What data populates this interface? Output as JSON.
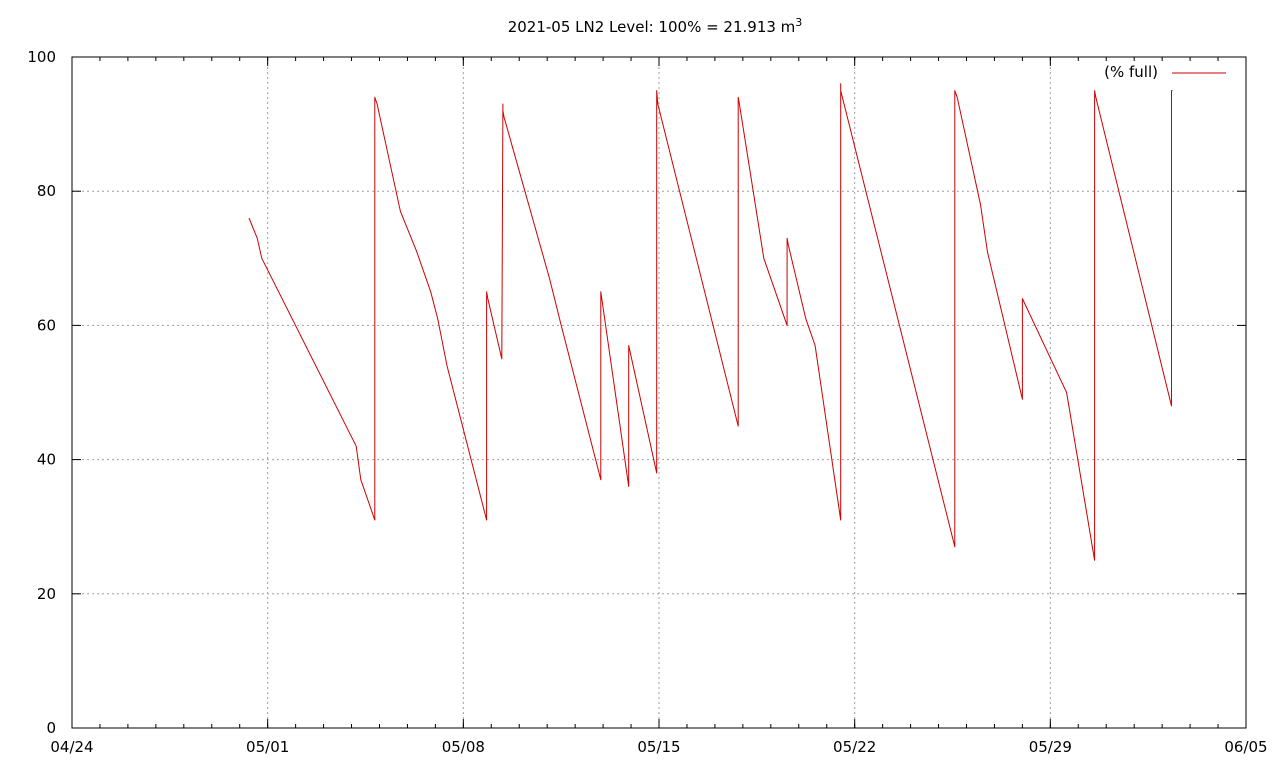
{
  "chart_data": {
    "type": "line",
    "title": "2021-05 LN2 Level: 100% = 21.913 m",
    "title_superscript": "3",
    "xlabel": "",
    "ylabel": "",
    "xlim": [
      "04/24",
      "06/05"
    ],
    "ylim": [
      0,
      100
    ],
    "x_ticks": [
      "04/24",
      "05/01",
      "05/08",
      "05/15",
      "05/22",
      "05/29",
      "06/05"
    ],
    "y_ticks": [
      "0",
      "20",
      "40",
      "60",
      "80",
      "100"
    ],
    "grid": true,
    "legend_position": "top-right",
    "series": [
      {
        "name": "(% full)",
        "color": "#cc0000",
        "x": [
          "04/30 08:00",
          "04/30 15:00",
          "04/30 19:00",
          "05/04 04:00",
          "05/04 08:00",
          "05/04 20:00",
          "05/04 20:00",
          "05/04 22:00",
          "05/05 18:00",
          "05/06 08:00",
          "05/06 20:00",
          "05/07 02:00",
          "05/07 10:00",
          "05/08 20:00",
          "05/08 20:00",
          "05/08 21:00",
          "05/09 09:00",
          "05/09 10:00",
          "05/09 10:00",
          "05/09 11:00",
          "05/11 02:00",
          "05/11 12:00",
          "05/12 22:00",
          "05/12 22:00",
          "05/13 22:00",
          "05/13 22:00",
          "05/14 22:00",
          "05/14 22:00",
          "05/14 23:00",
          "05/17 20:00",
          "05/17 20:00",
          "05/17 21:00",
          "05/18 18:00",
          "05/19 14:00",
          "05/19 14:00",
          "05/19 15:00",
          "05/20 06:00",
          "05/20 14:00",
          "05/21 12:00",
          "05/21 12:00",
          "05/21 12:00",
          "05/25 14:00",
          "05/25 14:00",
          "05/25 16:00",
          "05/26 12:00",
          "05/26 18:00",
          "05/28 00:00",
          "05/28 00:00",
          "05/29 14:00",
          "05/30 14:00",
          "05/30 14:00",
          "05/30 15:00",
          "06/02 08:00",
          "06/02 08:00",
          "06/02 09:00"
        ],
        "values": [
          76,
          73,
          70,
          42,
          37,
          31,
          94,
          93,
          77,
          71,
          65,
          61,
          54,
          31,
          65,
          64,
          55,
          93,
          92,
          91,
          67,
          60,
          37,
          65,
          36,
          57,
          38,
          95,
          93,
          45,
          94,
          93,
          70,
          60,
          73,
          72,
          61,
          57,
          31,
          96,
          95,
          27,
          95,
          94,
          78,
          71,
          49,
          64,
          50,
          25,
          95,
          94,
          48,
          95,
          95
        ]
      }
    ]
  }
}
